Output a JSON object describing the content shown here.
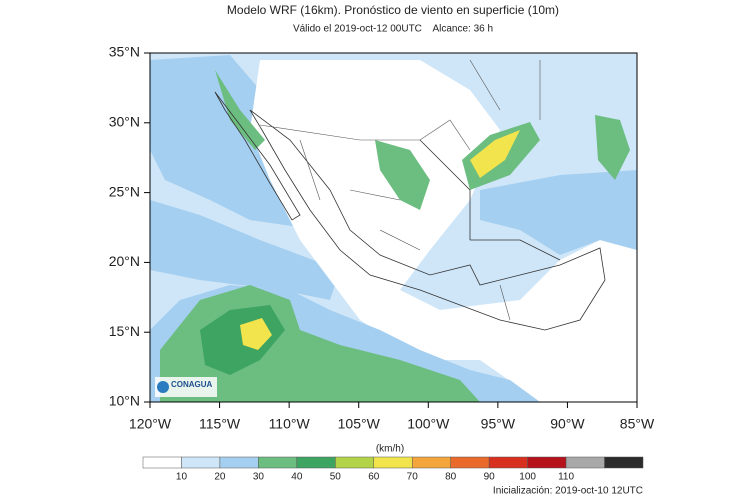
{
  "header": {
    "title": "Modelo WRF (16km). Pronóstico de viento en superficie (10m)",
    "subtitle": "Válido el 2019-oct-12 00UTC    Alcance: 36 h"
  },
  "map": {
    "lat_labels": [
      "35°N",
      "30°N",
      "25°N",
      "20°N",
      "15°N",
      "10°N"
    ],
    "lon_labels": [
      "120°W",
      "115°W",
      "110°W",
      "105°W",
      "100°W",
      "95°W",
      "90°W",
      "85°W"
    ],
    "logo": "CONAGUA"
  },
  "colorbar": {
    "unit": "(km/h)",
    "labels": [
      10,
      20,
      30,
      40,
      50,
      60,
      70,
      80,
      90,
      100,
      110
    ],
    "colors": [
      "#ffffff",
      "#cfe6f8",
      "#a5cff0",
      "#6cbd80",
      "#3ea462",
      "#b3d348",
      "#f2e44c",
      "#f4a63c",
      "#ea6a2c",
      "#d7301f",
      "#b5121b",
      "#a8a8a8",
      "#2b2b2b"
    ]
  },
  "footer": {
    "init": "Inicialización: 2019-oct-10 12UTC"
  }
}
